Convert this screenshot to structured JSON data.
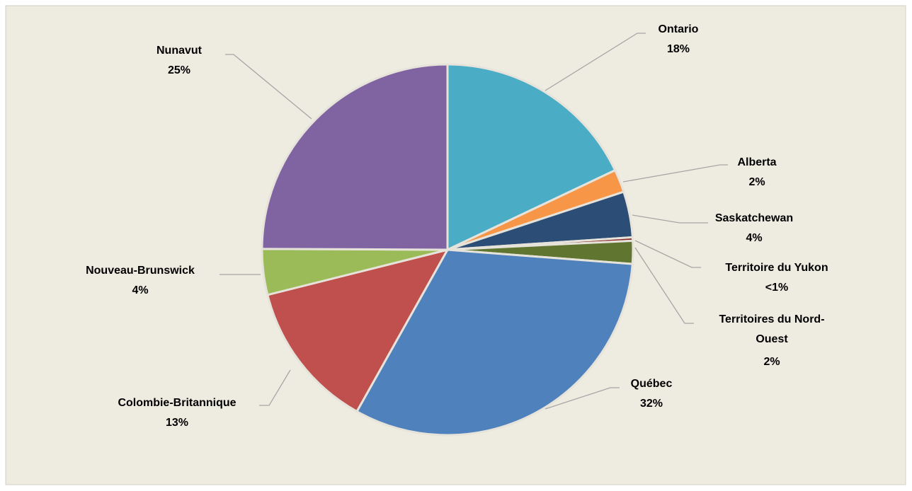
{
  "chart_data": {
    "type": "pie",
    "categories": [
      "Ontario",
      "Alberta",
      "Saskatchewan",
      "Territoire du Yukon",
      "Territoires du Nord-Ouest",
      "Québec",
      "Colombie-Britannique",
      "Nouveau-Brunswick",
      "Nunavut"
    ],
    "values": [
      18,
      2,
      4,
      0.3,
      2,
      32,
      13,
      4,
      25
    ],
    "value_labels": [
      "18%",
      "2%",
      "4%",
      "<1%",
      "2%",
      "32%",
      "13%",
      "4%",
      "25%"
    ],
    "colors": [
      "#4bacc6",
      "#f79646",
      "#2c4d75",
      "#8b2a2a",
      "#5f7530",
      "#4f81bd",
      "#c0504d",
      "#9bbb59",
      "#8064a2"
    ]
  }
}
